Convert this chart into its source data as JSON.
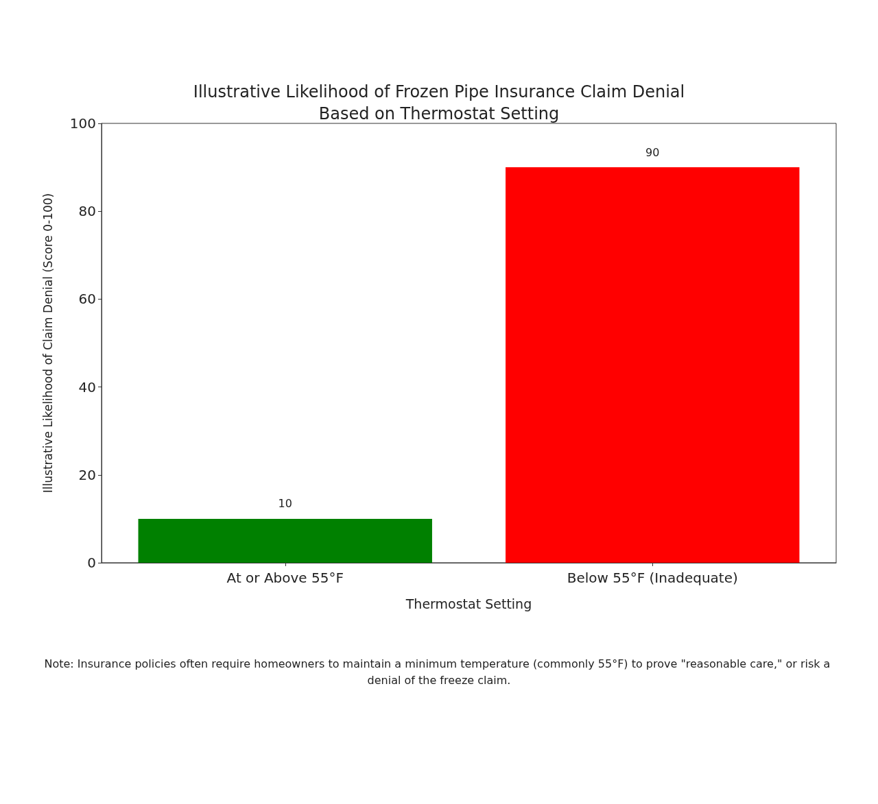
{
  "chart_data": {
    "type": "bar",
    "title": "Illustrative Likelihood of Frozen Pipe Insurance Claim Denial\nBased on Thermostat Setting",
    "xlabel": "Thermostat Setting",
    "ylabel": "Illustrative Likelihood of Claim Denial (Score 0-100)",
    "categories": [
      "At or Above 55°F",
      "Below 55°F (Inadequate)"
    ],
    "values": [
      10,
      90
    ],
    "colors": [
      "#008000",
      "#ff0000"
    ],
    "ylim": [
      0,
      100
    ],
    "yticks": [
      0,
      20,
      40,
      60,
      80,
      100
    ],
    "data_labels": true,
    "grid": false,
    "annotations": [
      "Note: Insurance policies often require homeowners to maintain a minimum temperature (commonly 55°F) to prove \"reasonable care,\" or risk a denial of the freeze claim."
    ]
  }
}
